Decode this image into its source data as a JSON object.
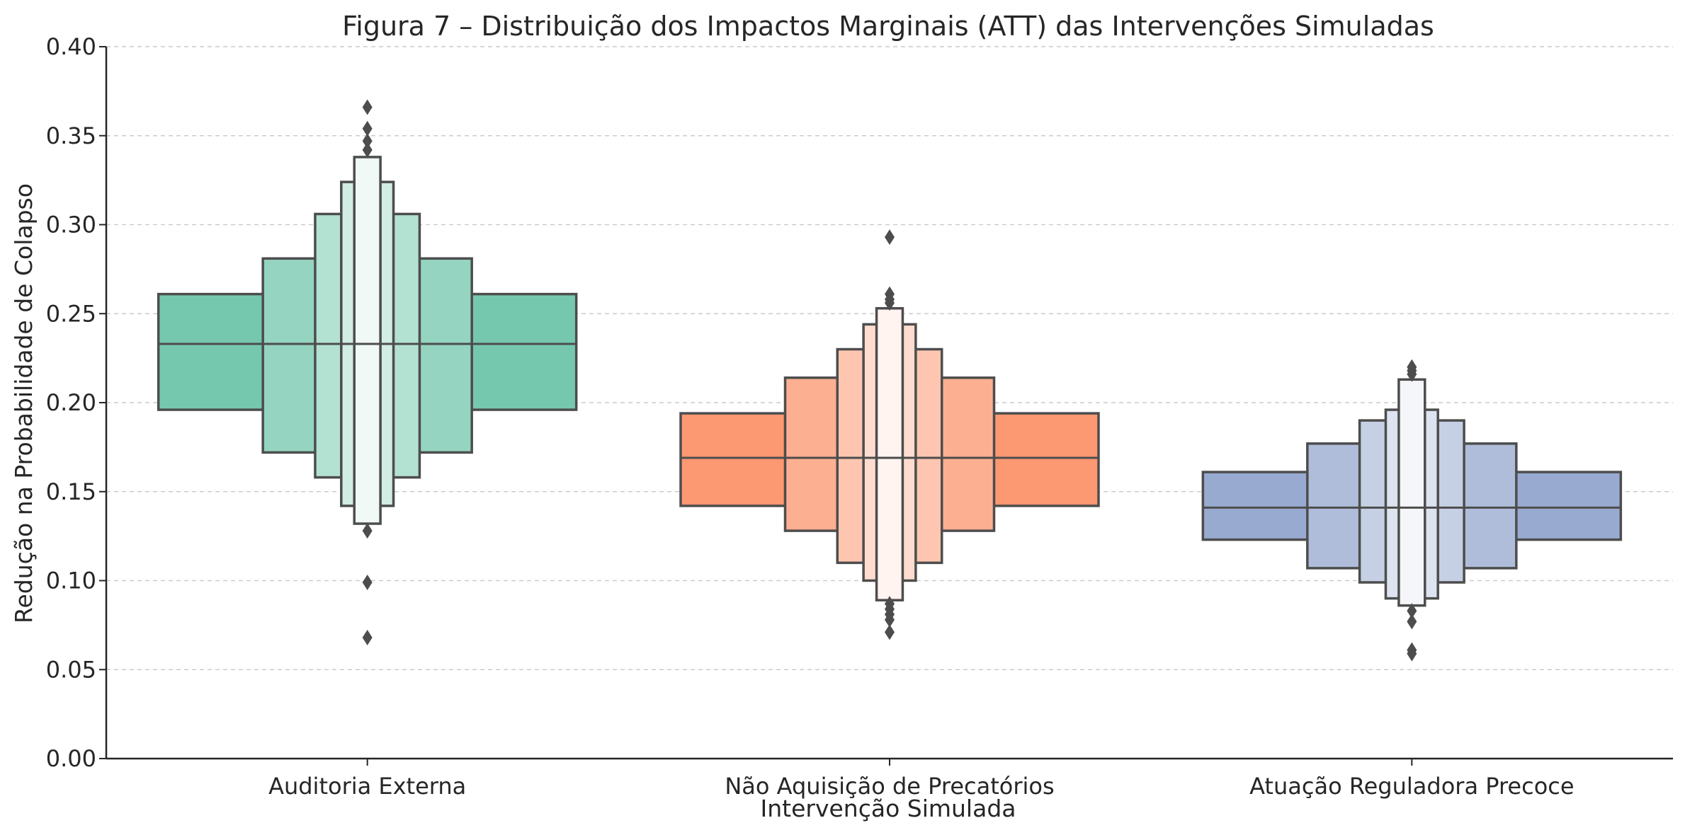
{
  "chart_data": {
    "type": "boxen",
    "title": "Figura 7 – Distribuição dos Impactos Marginais (ATT) das Intervenções Simuladas",
    "xlabel": "Intervenção Simulada",
    "ylabel": "Redução na Probabilidade de Colapso",
    "ylim": [
      0,
      0.4
    ],
    "yticks": [
      "0.00",
      "0.05",
      "0.10",
      "0.15",
      "0.20",
      "0.25",
      "0.30",
      "0.35",
      "0.40"
    ],
    "grid": "horizontal-dashed",
    "categories": [
      "Auditoria Externa",
      "Não Aquisição de Precatórios",
      "Atuação Reguladora Precoce"
    ],
    "series": [
      {
        "category": "Auditoria Externa",
        "color": "#66c2a5",
        "median": 0.233,
        "boxes": [
          [
            0.196,
            0.261
          ],
          [
            0.172,
            0.281
          ],
          [
            0.158,
            0.306
          ],
          [
            0.142,
            0.324
          ],
          [
            0.132,
            0.338
          ]
        ],
        "outliers": [
          0.128,
          0.099,
          0.068,
          0.342,
          0.347,
          0.354,
          0.366
        ]
      },
      {
        "category": "Não Aquisição de Precatórios",
        "color": "#fc8d62",
        "median": 0.169,
        "boxes": [
          [
            0.142,
            0.194
          ],
          [
            0.128,
            0.214
          ],
          [
            0.11,
            0.23
          ],
          [
            0.1,
            0.244
          ],
          [
            0.089,
            0.253
          ]
        ],
        "outliers": [
          0.087,
          0.084,
          0.081,
          0.078,
          0.071,
          0.256,
          0.258,
          0.261,
          0.293
        ]
      },
      {
        "category": "Atuação Reguladora Precoce",
        "color": "#8da0cb",
        "median": 0.141,
        "boxes": [
          [
            0.123,
            0.161
          ],
          [
            0.107,
            0.177
          ],
          [
            0.099,
            0.19
          ],
          [
            0.09,
            0.196
          ],
          [
            0.086,
            0.213
          ]
        ],
        "outliers": [
          0.083,
          0.077,
          0.061,
          0.059,
          0.216,
          0.218,
          0.22
        ]
      }
    ]
  }
}
